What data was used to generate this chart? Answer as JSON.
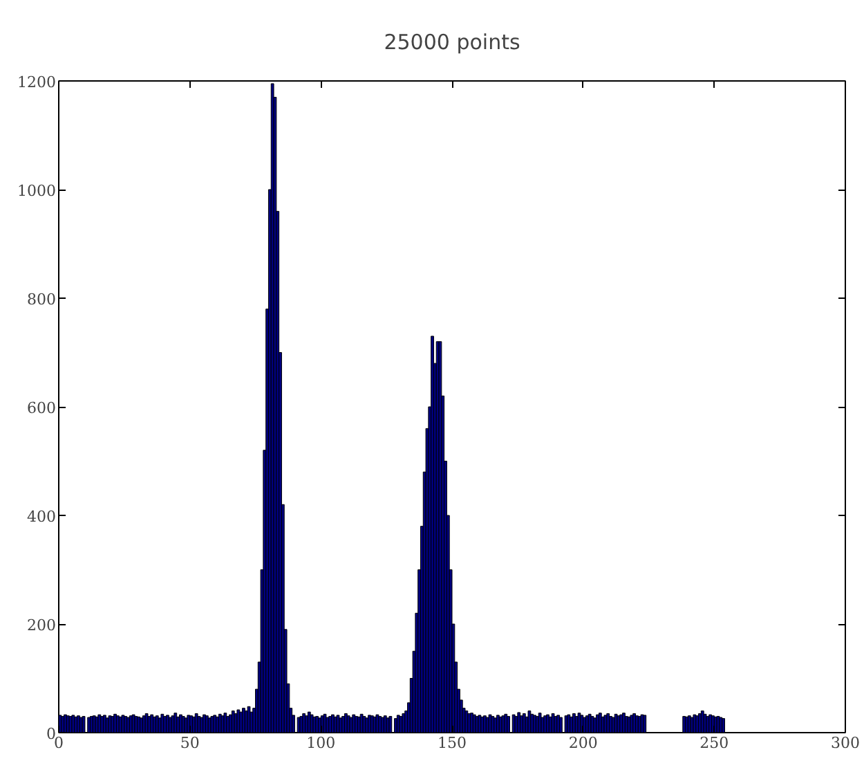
{
  "chart_data": {
    "type": "histogram",
    "title": "25000 points",
    "color": "#000080",
    "bins": [
      0,
      1,
      2,
      3,
      4,
      5,
      6,
      7,
      8,
      9,
      10,
      11,
      12,
      13,
      14,
      15,
      16,
      17,
      18,
      19,
      20,
      21,
      22,
      23,
      24,
      25,
      26,
      27,
      28,
      29,
      30,
      31,
      32,
      33,
      34,
      35,
      36,
      37,
      38,
      39,
      40,
      41,
      42,
      43,
      44,
      45,
      46,
      47,
      48,
      49,
      50,
      51,
      52,
      53,
      54,
      55,
      56,
      57,
      58,
      59,
      60,
      61,
      62,
      63,
      64,
      65,
      66,
      67,
      68,
      69,
      70,
      71,
      72,
      73,
      74,
      75,
      76,
      77,
      78,
      79,
      80,
      81,
      82,
      83,
      84,
      85,
      86,
      87,
      88,
      89,
      90,
      91,
      92,
      93,
      94,
      95,
      96,
      97,
      98,
      99,
      100,
      101,
      102,
      103,
      104,
      105,
      106,
      107,
      108,
      109,
      110,
      111,
      112,
      113,
      114,
      115,
      116,
      117,
      118,
      119,
      120,
      121,
      122,
      123,
      124,
      125,
      126,
      127,
      128,
      129,
      130,
      131,
      132,
      133,
      134,
      135,
      136,
      137,
      138,
      139,
      140,
      141,
      142,
      143,
      144,
      145,
      146,
      147,
      148,
      149,
      150,
      151,
      152,
      153,
      154,
      155,
      156,
      157,
      158,
      159,
      160,
      161,
      162,
      163,
      164,
      165,
      166,
      167,
      168,
      169,
      170,
      171,
      172,
      173,
      174,
      175,
      176,
      177,
      178,
      179,
      180,
      181,
      182,
      183,
      184,
      185,
      186,
      187,
      188,
      189,
      190,
      191,
      192,
      193,
      194,
      195,
      196,
      197,
      198,
      199,
      200,
      201,
      202,
      203,
      204,
      205,
      206,
      207,
      208,
      209,
      210,
      211,
      212,
      213,
      214,
      215,
      216,
      217,
      218,
      219,
      220,
      221,
      222,
      223,
      224,
      225,
      226,
      227,
      228,
      229,
      230,
      231,
      232,
      233,
      234,
      235,
      236,
      237,
      238,
      239,
      240,
      241,
      242,
      243,
      244,
      245,
      246,
      247,
      248,
      249,
      250,
      251,
      252,
      253,
      254
    ],
    "values": [
      32,
      30,
      33,
      31,
      30,
      32,
      29,
      31,
      28,
      30,
      0,
      28,
      30,
      31,
      29,
      33,
      30,
      32,
      27,
      31,
      30,
      34,
      31,
      29,
      32,
      30,
      28,
      31,
      33,
      30,
      29,
      27,
      31,
      35,
      30,
      33,
      29,
      31,
      27,
      34,
      30,
      32,
      28,
      31,
      36,
      29,
      33,
      30,
      27,
      32,
      31,
      29,
      35,
      30,
      28,
      33,
      31,
      27,
      30,
      32,
      29,
      34,
      31,
      36,
      30,
      33,
      40,
      35,
      42,
      38,
      45,
      40,
      48,
      38,
      45,
      80,
      130,
      300,
      520,
      780,
      1000,
      1195,
      1170,
      960,
      700,
      420,
      190,
      90,
      45,
      32,
      0,
      28,
      30,
      35,
      31,
      38,
      33,
      29,
      30,
      27,
      31,
      34,
      28,
      30,
      33,
      29,
      32,
      27,
      30,
      35,
      31,
      28,
      33,
      30,
      29,
      34,
      30,
      27,
      32,
      31,
      29,
      33,
      30,
      28,
      31,
      27,
      30,
      0,
      26,
      32,
      30,
      35,
      40,
      55,
      100,
      150,
      220,
      300,
      380,
      480,
      560,
      600,
      730,
      680,
      720,
      720,
      620,
      500,
      400,
      300,
      200,
      130,
      80,
      60,
      45,
      40,
      35,
      36,
      33,
      30,
      32,
      29,
      31,
      28,
      33,
      30,
      27,
      32,
      29,
      31,
      34,
      30,
      0,
      33,
      30,
      37,
      31,
      35,
      29,
      40,
      34,
      32,
      30,
      36,
      28,
      31,
      33,
      29,
      35,
      30,
      32,
      28,
      0,
      31,
      33,
      29,
      35,
      30,
      36,
      32,
      28,
      31,
      34,
      30,
      27,
      33,
      36,
      29,
      32,
      35,
      30,
      28,
      34,
      31,
      33,
      36,
      30,
      29,
      32,
      35,
      31,
      30,
      33,
      32,
      0,
      0,
      0,
      0,
      0,
      0,
      0,
      0,
      0,
      0,
      0,
      0,
      0,
      0,
      30,
      29,
      31,
      28,
      33,
      31,
      35,
      40,
      34,
      30,
      33,
      31,
      29,
      30,
      28,
      26
    ],
    "xlim": [
      0,
      300
    ],
    "xticks": [
      0,
      50,
      100,
      150,
      200,
      250,
      300
    ],
    "ylim": [
      0,
      1200
    ],
    "yticks": [
      0,
      200,
      400,
      600,
      800,
      1000,
      1200
    ],
    "grid": false
  }
}
